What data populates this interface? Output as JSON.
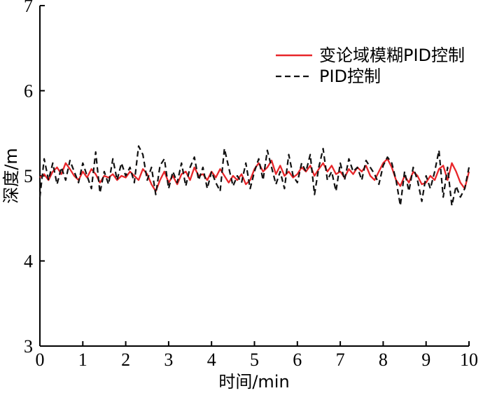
{
  "chart_data": {
    "type": "line",
    "title": "",
    "xlabel": "时间/min",
    "ylabel": "深度/m",
    "xlim": [
      0,
      10
    ],
    "ylim": [
      3,
      7
    ],
    "xticks": [
      "0",
      "1",
      "2",
      "3",
      "4",
      "5",
      "6",
      "7",
      "8",
      "9",
      "10"
    ],
    "yticks": [
      "3",
      "4",
      "5",
      "6",
      "7"
    ],
    "grid": false,
    "legend_position": "top-right",
    "series": [
      {
        "name": "变论域模糊PID控制",
        "color": "#e8262a",
        "style": "solid",
        "x": [
          0.0,
          0.1,
          0.2,
          0.3,
          0.4,
          0.5,
          0.6,
          0.7,
          0.8,
          0.9,
          1.0,
          1.1,
          1.2,
          1.3,
          1.4,
          1.5,
          1.6,
          1.7,
          1.8,
          1.9,
          2.0,
          2.1,
          2.2,
          2.3,
          2.4,
          2.5,
          2.6,
          2.7,
          2.8,
          2.9,
          3.0,
          3.1,
          3.2,
          3.3,
          3.4,
          3.5,
          3.6,
          3.7,
          3.8,
          3.9,
          4.0,
          4.1,
          4.2,
          4.3,
          4.4,
          4.5,
          4.6,
          4.7,
          4.8,
          4.9,
          5.0,
          5.1,
          5.2,
          5.3,
          5.4,
          5.5,
          5.6,
          5.7,
          5.8,
          5.9,
          6.0,
          6.1,
          6.2,
          6.3,
          6.4,
          6.5,
          6.6,
          6.7,
          6.8,
          6.9,
          7.0,
          7.1,
          7.2,
          7.3,
          7.4,
          7.5,
          7.6,
          7.7,
          7.8,
          7.9,
          8.0,
          8.1,
          8.2,
          8.3,
          8.4,
          8.5,
          8.6,
          8.7,
          8.8,
          8.9,
          9.0,
          9.1,
          9.2,
          9.3,
          9.4,
          9.5,
          9.6,
          9.7,
          9.8,
          9.9,
          10.0
        ],
        "values": [
          4.98,
          5.02,
          4.95,
          5.05,
          5.1,
          5.02,
          5.15,
          5.08,
          5.0,
          4.95,
          5.05,
          4.98,
          5.08,
          5.02,
          4.92,
          5.0,
          4.98,
          5.02,
          4.95,
          5.0,
          4.98,
          5.05,
          5.0,
          4.95,
          5.08,
          5.02,
          4.9,
          4.82,
          4.95,
          5.05,
          4.92,
          5.0,
          4.9,
          5.02,
          5.05,
          4.95,
          5.1,
          5.0,
          5.02,
          4.95,
          5.05,
          4.98,
          5.08,
          5.0,
          4.92,
          5.0,
          4.95,
          5.02,
          4.9,
          4.95,
          5.08,
          5.15,
          5.05,
          5.1,
          5.18,
          5.02,
          5.12,
          5.0,
          5.05,
          4.98,
          5.02,
          5.1,
          5.05,
          5.12,
          5.0,
          5.08,
          5.15,
          5.05,
          5.12,
          5.02,
          5.05,
          4.98,
          5.08,
          5.02,
          5.1,
          5.05,
          5.12,
          5.0,
          4.95,
          5.05,
          5.15,
          5.2,
          5.1,
          4.95,
          4.88,
          5.0,
          4.92,
          5.05,
          5.0,
          4.9,
          4.92,
          5.0,
          4.95,
          5.08,
          5.12,
          4.95,
          5.15,
          5.05,
          4.92,
          4.85,
          5.05
        ],
        "markers": []
      },
      {
        "name": "PID控制",
        "color": "#111111",
        "style": "dashed",
        "x": [
          0.0,
          0.1,
          0.2,
          0.3,
          0.4,
          0.5,
          0.6,
          0.7,
          0.8,
          0.9,
          1.0,
          1.1,
          1.2,
          1.3,
          1.4,
          1.5,
          1.6,
          1.7,
          1.8,
          1.9,
          2.0,
          2.1,
          2.2,
          2.3,
          2.4,
          2.5,
          2.6,
          2.7,
          2.8,
          2.9,
          3.0,
          3.1,
          3.2,
          3.3,
          3.4,
          3.5,
          3.6,
          3.7,
          3.8,
          3.9,
          4.0,
          4.1,
          4.2,
          4.3,
          4.4,
          4.5,
          4.6,
          4.7,
          4.8,
          4.9,
          5.0,
          5.1,
          5.2,
          5.3,
          5.4,
          5.5,
          5.6,
          5.7,
          5.8,
          5.9,
          6.0,
          6.1,
          6.2,
          6.3,
          6.4,
          6.5,
          6.6,
          6.7,
          6.8,
          6.9,
          7.0,
          7.1,
          7.2,
          7.3,
          7.4,
          7.5,
          7.6,
          7.7,
          7.8,
          7.9,
          8.0,
          8.1,
          8.2,
          8.3,
          8.4,
          8.5,
          8.6,
          8.7,
          8.8,
          8.9,
          9.0,
          9.1,
          9.2,
          9.3,
          9.4,
          9.5,
          9.6,
          9.7,
          9.8,
          9.9,
          10.0
        ],
        "values": [
          4.75,
          5.2,
          4.95,
          5.15,
          4.9,
          5.1,
          4.95,
          5.18,
          5.05,
          4.92,
          5.15,
          5.0,
          4.85,
          5.28,
          4.8,
          5.05,
          4.9,
          5.2,
          4.95,
          5.15,
          5.0,
          5.1,
          4.92,
          5.35,
          5.25,
          4.95,
          5.1,
          4.78,
          5.12,
          5.2,
          4.85,
          5.05,
          4.92,
          5.15,
          4.88,
          5.1,
          5.22,
          4.95,
          5.1,
          4.85,
          5.05,
          4.92,
          4.82,
          5.32,
          5.1,
          4.88,
          5.0,
          4.92,
          5.15,
          4.85,
          5.05,
          5.2,
          4.95,
          5.3,
          5.1,
          4.9,
          5.05,
          4.85,
          5.25,
          5.0,
          4.92,
          5.15,
          5.05,
          5.25,
          4.78,
          5.1,
          5.32,
          4.95,
          5.05,
          4.82,
          5.15,
          4.95,
          5.2,
          5.05,
          5.1,
          4.95,
          5.18,
          5.1,
          5.02,
          4.9,
          5.12,
          5.22,
          5.15,
          4.95,
          4.65,
          5.05,
          4.82,
          5.1,
          4.95,
          4.7,
          5.0,
          4.85,
          5.05,
          5.3,
          4.75,
          5.1,
          4.65,
          4.88,
          4.75,
          4.85,
          5.1
        ],
        "markers": []
      }
    ]
  }
}
